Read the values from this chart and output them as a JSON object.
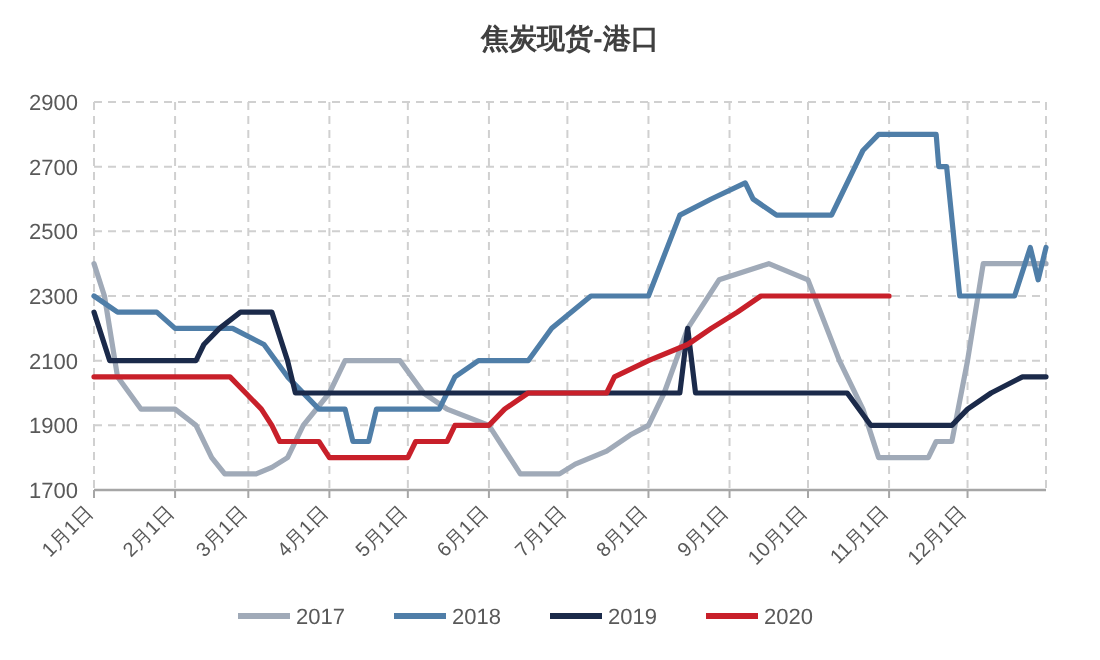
{
  "chart_data": {
    "type": "line",
    "title": "焦炭现货-港口",
    "xlim": [
      "--01-01",
      "--12-31"
    ],
    "xticks": [
      {
        "value": "--01-01",
        "label": "1月1日"
      },
      {
        "value": "--02-01",
        "label": "2月1日"
      },
      {
        "value": "--03-01",
        "label": "3月1日"
      },
      {
        "value": "--04-01",
        "label": "4月1日"
      },
      {
        "value": "--05-01",
        "label": "5月1日"
      },
      {
        "value": "--06-01",
        "label": "6月1日"
      },
      {
        "value": "--07-01",
        "label": "7月1日"
      },
      {
        "value": "--08-01",
        "label": "8月1日"
      },
      {
        "value": "--09-01",
        "label": "9月1日"
      },
      {
        "value": "--10-01",
        "label": "10月1日"
      },
      {
        "value": "--11-01",
        "label": "11月1日"
      },
      {
        "value": "--12-01",
        "label": "12月1日"
      }
    ],
    "ylim": [
      1700,
      2900
    ],
    "yticks": [
      1700,
      1900,
      2100,
      2300,
      2500,
      2700,
      2900
    ],
    "grid": true,
    "legend": "bottom",
    "marker": "none",
    "line_style": "solid",
    "series": [
      {
        "name": "2017",
        "color": "#a0aab8",
        "x": [
          "--01-01",
          "--01-05",
          "--01-10",
          "--01-19",
          "--02-01",
          "--02-09",
          "--02-15",
          "--02-20",
          "--03-04",
          "--03-10",
          "--03-16",
          "--03-22",
          "--04-01",
          "--04-07",
          "--04-28",
          "--05-07",
          "--05-16",
          "--06-01",
          "--06-13",
          "--06-28",
          "--07-04",
          "--07-16",
          "--07-25",
          "--08-01",
          "--08-07",
          "--08-16",
          "--08-28",
          "--09-16",
          "--10-01",
          "--10-13",
          "--10-22",
          "--10-28",
          "--11-16",
          "--11-19",
          "--11-25",
          "--12-01",
          "--12-07",
          "--12-19",
          "--12-31"
        ],
        "values": [
          2400,
          2300,
          2050,
          1950,
          1950,
          1900,
          1800,
          1750,
          1750,
          1770,
          1800,
          1900,
          2000,
          2100,
          2100,
          2000,
          1950,
          1900,
          1750,
          1750,
          1780,
          1820,
          1870,
          1900,
          2000,
          2200,
          2350,
          2400,
          2350,
          2100,
          1950,
          1800,
          1800,
          1850,
          1850,
          2100,
          2400,
          2400,
          2400
        ]
      },
      {
        "name": "2018",
        "color": "#4f7ea8",
        "x": [
          "--01-01",
          "--01-10",
          "--01-25",
          "--02-01",
          "--02-23",
          "--03-07",
          "--03-16",
          "--03-28",
          "--04-07",
          "--04-10",
          "--04-16",
          "--04-19",
          "--05-13",
          "--05-19",
          "--05-28",
          "--06-16",
          "--06-25",
          "--07-10",
          "--08-01",
          "--08-13",
          "--08-25",
          "--09-07",
          "--09-10",
          "--09-19",
          "--10-10",
          "--10-13",
          "--10-19",
          "--10-22",
          "--10-28",
          "--11-19",
          "--11-20",
          "--11-23",
          "--11-28",
          "--12-19",
          "--12-25",
          "--12-28",
          "--12-31"
        ],
        "values": [
          2300,
          2250,
          2250,
          2200,
          2200,
          2150,
          2050,
          1950,
          1950,
          1850,
          1850,
          1950,
          1950,
          2050,
          2100,
          2100,
          2200,
          2300,
          2300,
          2550,
          2600,
          2650,
          2600,
          2550,
          2550,
          2600,
          2700,
          2750,
          2800,
          2800,
          2700,
          2700,
          2300,
          2300,
          2450,
          2350,
          2450
        ]
      },
      {
        "name": "2019",
        "color": "#1b2a4a",
        "x": [
          "--01-01",
          "--01-07",
          "--02-09",
          "--02-12",
          "--02-18",
          "--02-26",
          "--03-10",
          "--03-16",
          "--03-19",
          "--06-01",
          "--06-10",
          "--08-13",
          "--08-16",
          "--08-19",
          "--10-16",
          "--10-25",
          "--11-25",
          "--12-01",
          "--12-10",
          "--12-22",
          "--12-31"
        ],
        "values": [
          2250,
          2100,
          2100,
          2150,
          2200,
          2250,
          2250,
          2100,
          2000,
          2000,
          2000,
          2000,
          2200,
          2000,
          2000,
          1900,
          1900,
          1950,
          2000,
          2050,
          2050
        ]
      },
      {
        "name": "2020",
        "color": "#c8202a",
        "x": [
          "--01-01",
          "--02-22",
          "--02-28",
          "--03-06",
          "--03-10",
          "--03-13",
          "--03-28",
          "--04-01",
          "--05-01",
          "--05-04",
          "--05-16",
          "--05-19",
          "--06-01",
          "--06-07",
          "--06-16",
          "--07-16",
          "--07-19",
          "--08-01",
          "--08-16",
          "--08-25",
          "--09-04",
          "--09-13",
          "--11-01"
        ],
        "values": [
          2050,
          2050,
          2000,
          1950,
          1900,
          1850,
          1850,
          1800,
          1800,
          1850,
          1850,
          1900,
          1900,
          1950,
          2000,
          2000,
          2050,
          2100,
          2150,
          2200,
          2250,
          2300,
          2300
        ]
      }
    ]
  }
}
